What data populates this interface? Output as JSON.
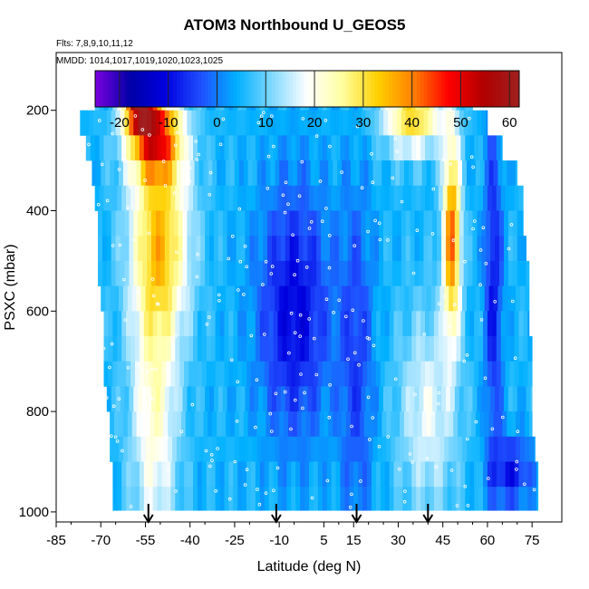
{
  "chart_data": {
    "type": "heatmap",
    "title": "ATOM3 Northbound U_GEOS5",
    "flights_label": "Flts: 7,8,9,10,11,12",
    "dates_label": "MMDD: 1014,1017,1019,1020,1023,1025",
    "xlabel": "Latitude (deg N)",
    "ylabel": "PSXC (mbar)",
    "x_ticks": [
      -85,
      -70,
      -55,
      -40,
      -25,
      -10,
      5,
      15,
      30,
      45,
      60,
      75
    ],
    "y_ticks": [
      200,
      400,
      600,
      800,
      1000
    ],
    "xlim": [
      -85,
      85
    ],
    "ylim": [
      1020,
      85
    ],
    "colorbar": {
      "ticks": [
        -20,
        -10,
        0,
        10,
        20,
        30,
        40,
        50,
        60
      ],
      "range": [
        -25,
        62
      ],
      "colors": [
        "#7b00e0",
        "#0000a8",
        "#0000e0",
        "#2050ff",
        "#00b0ff",
        "#80d8ff",
        "#ffffff",
        "#ffffa0",
        "#ffd000",
        "#ff8000",
        "#ff0000",
        "#b00000",
        "#a02020"
      ]
    },
    "pressure_levels": [
      175,
      225,
      275,
      325,
      375,
      425,
      475,
      525,
      575,
      625,
      675,
      725,
      775,
      825,
      875,
      925,
      975
    ],
    "lat_extents": [
      [
        -72,
        55
      ],
      [
        -77,
        60
      ],
      [
        -75,
        65
      ],
      [
        -73,
        70
      ],
      [
        -72,
        72
      ],
      [
        -71,
        72
      ],
      [
        -71,
        73
      ],
      [
        -71,
        74
      ],
      [
        -70,
        74
      ],
      [
        -69,
        74
      ],
      [
        -69,
        75
      ],
      [
        -69,
        75
      ],
      [
        -68,
        75
      ],
      [
        -67,
        75
      ],
      [
        -67,
        76
      ],
      [
        -66,
        77
      ],
      [
        -66,
        77
      ]
    ],
    "jet_features": [
      {
        "lat": -57,
        "p": 180,
        "u": 55,
        "dlat": 5,
        "dp": 50
      },
      {
        "lat": -52,
        "p": 250,
        "u": 40,
        "dlat": 9,
        "dp": 80
      },
      {
        "lat": -50,
        "p": 450,
        "u": 28,
        "dlat": 10,
        "dp": 200
      },
      {
        "lat": -52,
        "p": 800,
        "u": 18,
        "dlat": 8,
        "dp": 300
      },
      {
        "lat": -5,
        "p": 600,
        "u": -14,
        "dlat": 12,
        "dp": 250
      },
      {
        "lat": 16,
        "p": 700,
        "u": -8,
        "dlat": 6,
        "dp": 350
      },
      {
        "lat": 35,
        "p": 200,
        "u": 30,
        "dlat": 10,
        "dp": 80
      },
      {
        "lat": 48,
        "p": 450,
        "u": 38,
        "dlat": 3,
        "dp": 200
      },
      {
        "lat": 62,
        "p": 550,
        "u": -12,
        "dlat": 3,
        "dp": 350
      },
      {
        "lat": 68,
        "p": 920,
        "u": -12,
        "dlat": 7,
        "dp": 70
      },
      {
        "lat": 40,
        "p": 800,
        "u": 14,
        "dlat": 10,
        "dp": 200
      }
    ],
    "u_background": 5,
    "arrows_lat": [
      -54,
      -11,
      16,
      40
    ]
  }
}
